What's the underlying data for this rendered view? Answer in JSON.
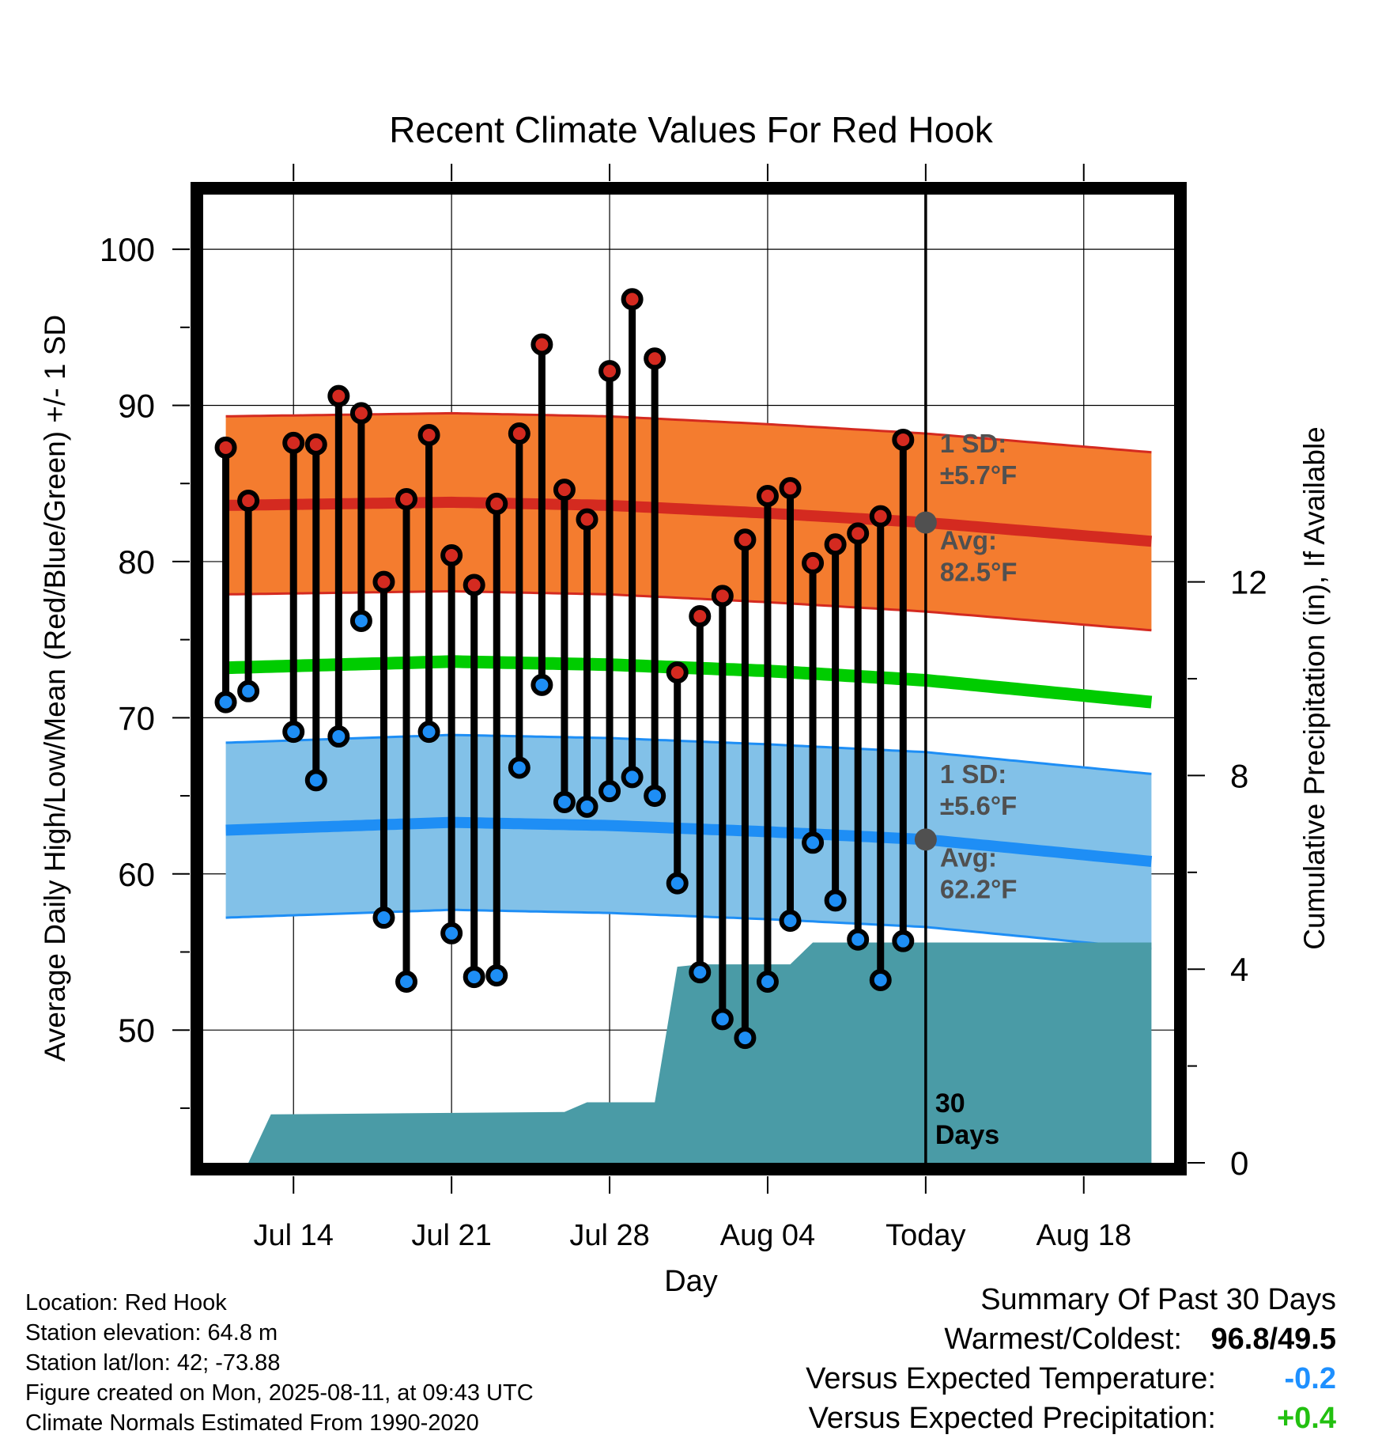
{
  "chart_data": {
    "type": "line",
    "title": "Recent Climate Values For Red Hook",
    "xlabel": "Day",
    "ylabel": "Average Daily High/Low/Mean (Red/Blue/Green) +/- 1 SD",
    "y2label": "Cumulative Precipitation (in), If Available",
    "ylim": [
      41.5,
      103.5
    ],
    "y2lim": [
      0,
      20
    ],
    "x_range": [
      "2025-07-10",
      "2025-08-22"
    ],
    "x_ticks": [
      {
        "date": "2025-07-14",
        "label": "Jul 14"
      },
      {
        "date": "2025-07-21",
        "label": "Jul 21"
      },
      {
        "date": "2025-07-28",
        "label": "Jul 28"
      },
      {
        "date": "2025-08-04",
        "label": "Aug 04"
      },
      {
        "date": "2025-08-11",
        "label": "Today"
      },
      {
        "date": "2025-08-18",
        "label": "Aug 18"
      }
    ],
    "y_ticks": [
      50,
      60,
      70,
      80,
      90,
      100
    ],
    "y2_ticks": [
      0,
      4,
      8,
      12
    ],
    "grid": true,
    "today": "2025-08-11",
    "period_label": "30 Days",
    "normals": {
      "dates": [
        "2025-07-11",
        "2025-07-21",
        "2025-07-28",
        "2025-08-04",
        "2025-08-11",
        "2025-08-21"
      ],
      "high_avg": [
        83.6,
        83.8,
        83.6,
        83.1,
        82.5,
        81.3
      ],
      "high_sd": 5.7,
      "low_avg": [
        62.8,
        63.3,
        63.1,
        62.7,
        62.2,
        60.8
      ],
      "low_sd": 5.6,
      "mean_avg": [
        73.2,
        73.6,
        73.4,
        73.0,
        72.4,
        71.0
      ]
    },
    "series": [
      {
        "name": "High",
        "dates": [
          "2025-07-11",
          "2025-07-12",
          "2025-07-14",
          "2025-07-15",
          "2025-07-16",
          "2025-07-17",
          "2025-07-18",
          "2025-07-19",
          "2025-07-20",
          "2025-07-21",
          "2025-07-22",
          "2025-07-23",
          "2025-07-24",
          "2025-07-25",
          "2025-07-26",
          "2025-07-27",
          "2025-07-28",
          "2025-07-29",
          "2025-07-30",
          "2025-07-31",
          "2025-08-01",
          "2025-08-02",
          "2025-08-03",
          "2025-08-04",
          "2025-08-05",
          "2025-08-06",
          "2025-08-07",
          "2025-08-08",
          "2025-08-09",
          "2025-08-10"
        ],
        "values": [
          87.3,
          83.9,
          87.6,
          87.5,
          90.6,
          89.5,
          78.7,
          84.0,
          88.1,
          80.4,
          78.5,
          83.7,
          88.2,
          93.9,
          84.6,
          82.7,
          92.2,
          96.8,
          93.0,
          72.9,
          76.5,
          77.8,
          81.4,
          84.2,
          84.7,
          79.9,
          81.1,
          81.8,
          82.9,
          87.8
        ]
      },
      {
        "name": "Low",
        "dates": [
          "2025-07-11",
          "2025-07-12",
          "2025-07-14",
          "2025-07-15",
          "2025-07-16",
          "2025-07-17",
          "2025-07-18",
          "2025-07-19",
          "2025-07-20",
          "2025-07-21",
          "2025-07-22",
          "2025-07-23",
          "2025-07-24",
          "2025-07-25",
          "2025-07-26",
          "2025-07-27",
          "2025-07-28",
          "2025-07-29",
          "2025-07-30",
          "2025-07-31",
          "2025-08-01",
          "2025-08-02",
          "2025-08-03",
          "2025-08-04",
          "2025-08-05",
          "2025-08-06",
          "2025-08-07",
          "2025-08-08",
          "2025-08-09",
          "2025-08-10"
        ],
        "values": [
          71.0,
          71.7,
          69.1,
          66.0,
          68.8,
          76.2,
          57.2,
          53.1,
          69.1,
          56.2,
          53.4,
          53.5,
          66.8,
          72.1,
          64.6,
          64.3,
          65.3,
          66.2,
          65.0,
          59.4,
          53.7,
          50.7,
          49.5,
          53.1,
          57.0,
          62.0,
          58.3,
          55.8,
          53.2,
          55.7
        ]
      }
    ],
    "precipitation": {
      "dates": [
        "2025-07-12",
        "2025-07-13",
        "2025-07-26",
        "2025-07-27",
        "2025-07-30",
        "2025-07-31",
        "2025-08-01",
        "2025-08-05",
        "2025-08-06",
        "2025-08-21"
      ],
      "cumulative": [
        0.0,
        1.0,
        1.05,
        1.25,
        1.25,
        4.05,
        4.1,
        4.1,
        4.55,
        4.55
      ]
    },
    "annotations": {
      "high_sd_label": "1 SD:",
      "high_sd_value": "±5.7°F",
      "high_avg_label": "Avg:",
      "high_avg_value": "82.5°F",
      "low_sd_label": "1 SD:",
      "low_sd_value": "±5.6°F",
      "low_avg_label": "Avg:",
      "low_avg_value": "62.2°F"
    },
    "colors": {
      "high_band": "#f47c2f",
      "high_line": "#d42a20",
      "low_band": "#82c1e8",
      "low_line": "#1e8ef5",
      "mean_line": "#00cc00",
      "precip": "#4a9ba6",
      "high_marker": "#d42a20",
      "low_marker": "#1e8ef5",
      "annotation": "#505050"
    }
  },
  "info": {
    "location": "Location: Red Hook",
    "elevation": "Station elevation: 64.8 m",
    "latlon": "Station lat/lon: 42; -73.88",
    "created": "Figure created on Mon, 2025-08-11, at 09:43 UTC",
    "normals": "Climate Normals Estimated From 1990-2020"
  },
  "summary": {
    "title": "Summary Of Past 30 Days",
    "warm_cold_label": "Warmest/Coldest:",
    "warm_value": "96.8",
    "separator": "/",
    "cold_value": "49.5",
    "temp_label": "Versus Expected Temperature:",
    "temp_value": "-0.2",
    "precip_label": "Versus Expected Precipitation:",
    "precip_value": "+0.4"
  }
}
